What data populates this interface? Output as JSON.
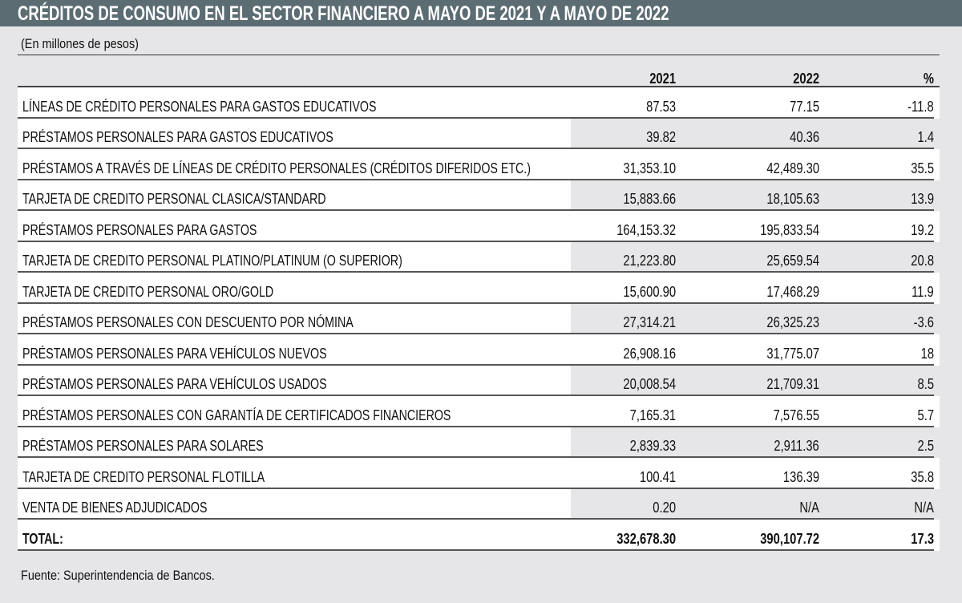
{
  "title": "CRÉDITOS DE CONSUMO EN EL SECTOR FINANCIERO A MAYO DE 2021 Y A MAYO DE 2022",
  "subtitle": "(En millones de pesos)",
  "source": "Fuente: Superintendencia de Bancos.",
  "colors": {
    "title_bar": "#5c6c73",
    "background": "#e6e6e8"
  },
  "chart_data": {
    "type": "table",
    "title": "CRÉDITOS DE CONSUMO EN EL SECTOR FINANCIERO A MAYO DE 2021 Y A MAYO DE 2022",
    "columns": [
      "",
      "2021",
      "2022",
      "%"
    ],
    "rows": [
      [
        "LÍNEAS DE CRÉDITO PERSONALES PARA GASTOS EDUCATIVOS",
        "87.53",
        "77.15",
        "-11.8"
      ],
      [
        "PRÉSTAMOS PERSONALES PARA GASTOS EDUCATIVOS",
        "39.82",
        "40.36",
        "1.4"
      ],
      [
        "PRÉSTAMOS A TRAVÉS DE LÍNEAS DE CRÉDITO PERSONALES (CRÉDITOS DIFERIDOS ETC.)",
        "31,353.10",
        "42,489.30",
        "35.5"
      ],
      [
        "TARJETA DE CREDITO PERSONAL CLASICA/STANDARD",
        "15,883.66",
        "18,105.63",
        "13.9"
      ],
      [
        "PRÉSTAMOS PERSONALES PARA GASTOS",
        "164,153.32",
        "195,833.54",
        "19.2"
      ],
      [
        "TARJETA DE CREDITO PERSONAL PLATINO/PLATINUM (O SUPERIOR)",
        "21,223.80",
        "25,659.54",
        "20.8"
      ],
      [
        "TARJETA DE CREDITO PERSONAL ORO/GOLD",
        "15,600.90",
        "17,468.29",
        "11.9"
      ],
      [
        "PRÉSTAMOS PERSONALES CON DESCUENTO POR NÓMINA",
        "27,314.21",
        "26,325.23",
        "-3.6"
      ],
      [
        "PRÉSTAMOS PERSONALES PARA VEHÍCULOS NUEVOS",
        "26,908.16",
        "31,775.07",
        "18"
      ],
      [
        "PRÉSTAMOS PERSONALES PARA VEHÍCULOS USADOS",
        "20,008.54",
        "21,709.31",
        "8.5"
      ],
      [
        "PRÉSTAMOS PERSONALES CON GARANTÍA DE CERTIFICADOS FINANCIEROS",
        "7,165.31",
        "7,576.55",
        "5.7"
      ],
      [
        "PRÉSTAMOS PERSONALES PARA SOLARES",
        "2,839.33",
        "2,911.36",
        "2.5"
      ],
      [
        "TARJETA DE CREDITO PERSONAL FLOTILLA",
        "100.41",
        "136.39",
        "35.8"
      ],
      [
        "VENTA DE BIENES ADJUDICADOS",
        "0.20",
        "N/A",
        "N/A"
      ]
    ],
    "total": [
      "TOTAL:",
      "332,678.30",
      "390,107.72",
      "17.3"
    ]
  }
}
